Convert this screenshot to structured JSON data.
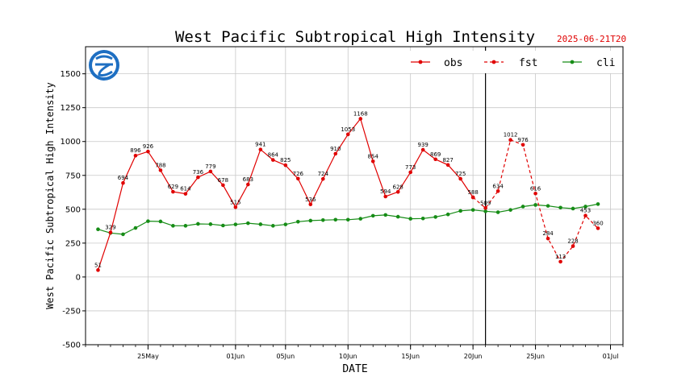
{
  "chart_data": {
    "type": "line",
    "title": "West Pacific Subtropical High Intensity",
    "timestamp": "2025-06-21T20",
    "xlabel": "DATE",
    "ylabel": "West Pacific Subtropical High Intensity",
    "ylim": [
      -500,
      1700
    ],
    "yticks": [
      -500,
      -250,
      0,
      250,
      500,
      750,
      1000,
      1250,
      1500
    ],
    "xlim": [
      "2025-05-20",
      "2025-07-02"
    ],
    "xticks": [
      {
        "date": "2025-05-25",
        "label": "25May"
      },
      {
        "date": "2025-06-01",
        "label": "01Jun"
      },
      {
        "date": "2025-06-05",
        "label": "05Jun"
      },
      {
        "date": "2025-06-10",
        "label": "10Jun"
      },
      {
        "date": "2025-06-15",
        "label": "15Jun"
      },
      {
        "date": "2025-06-20",
        "label": "20Jun"
      },
      {
        "date": "2025-06-25",
        "label": "25Jun"
      },
      {
        "date": "2025-07-01",
        "label": "01Jul"
      }
    ],
    "vline": "2025-06-21",
    "grid": true,
    "legend_position": "top-right",
    "series": [
      {
        "name": "obs",
        "color": "#e00000",
        "style": "solid",
        "labeled": true,
        "points": [
          {
            "x": "2025-05-21",
            "y": 51
          },
          {
            "x": "2025-05-22",
            "y": 329
          },
          {
            "x": "2025-05-23",
            "y": 694
          },
          {
            "x": "2025-05-24",
            "y": 896
          },
          {
            "x": "2025-05-25",
            "y": 926
          },
          {
            "x": "2025-05-26",
            "y": 788
          },
          {
            "x": "2025-05-27",
            "y": 629
          },
          {
            "x": "2025-05-28",
            "y": 614
          },
          {
            "x": "2025-05-29",
            "y": 736
          },
          {
            "x": "2025-05-30",
            "y": 779
          },
          {
            "x": "2025-05-31",
            "y": 678
          },
          {
            "x": "2025-06-01",
            "y": 515
          },
          {
            "x": "2025-06-02",
            "y": 683
          },
          {
            "x": "2025-06-03",
            "y": 941
          },
          {
            "x": "2025-06-04",
            "y": 864
          },
          {
            "x": "2025-06-05",
            "y": 825
          },
          {
            "x": "2025-06-06",
            "y": 726
          },
          {
            "x": "2025-06-07",
            "y": 536
          },
          {
            "x": "2025-06-08",
            "y": 724
          },
          {
            "x": "2025-06-09",
            "y": 910
          },
          {
            "x": "2025-06-10",
            "y": 1053
          },
          {
            "x": "2025-06-11",
            "y": 1168
          },
          {
            "x": "2025-06-12",
            "y": 854
          },
          {
            "x": "2025-06-13",
            "y": 594
          },
          {
            "x": "2025-06-14",
            "y": 628
          },
          {
            "x": "2025-06-15",
            "y": 773
          },
          {
            "x": "2025-06-16",
            "y": 939
          },
          {
            "x": "2025-06-17",
            "y": 869
          },
          {
            "x": "2025-06-18",
            "y": 827
          },
          {
            "x": "2025-06-19",
            "y": 725
          },
          {
            "x": "2025-06-20",
            "y": 588
          }
        ]
      },
      {
        "name": "fst",
        "color": "#e00000",
        "style": "dashed",
        "labeled": true,
        "points": [
          {
            "x": "2025-06-20",
            "y": 588
          },
          {
            "x": "2025-06-21",
            "y": 509
          },
          {
            "x": "2025-06-22",
            "y": 634
          },
          {
            "x": "2025-06-23",
            "y": 1012
          },
          {
            "x": "2025-06-24",
            "y": 976
          },
          {
            "x": "2025-06-25",
            "y": 616
          },
          {
            "x": "2025-06-26",
            "y": 284
          },
          {
            "x": "2025-06-27",
            "y": 113
          },
          {
            "x": "2025-06-28",
            "y": 228
          },
          {
            "x": "2025-06-29",
            "y": 453
          },
          {
            "x": "2025-06-30",
            "y": 360
          }
        ]
      },
      {
        "name": "cli",
        "color": "#168c16",
        "style": "solid",
        "labeled": false,
        "points": [
          {
            "x": "2025-05-21",
            "y": 352
          },
          {
            "x": "2025-05-22",
            "y": 325
          },
          {
            "x": "2025-05-23",
            "y": 315
          },
          {
            "x": "2025-05-24",
            "y": 362
          },
          {
            "x": "2025-05-25",
            "y": 412
          },
          {
            "x": "2025-05-26",
            "y": 410
          },
          {
            "x": "2025-05-27",
            "y": 378
          },
          {
            "x": "2025-05-28",
            "y": 378
          },
          {
            "x": "2025-05-29",
            "y": 392
          },
          {
            "x": "2025-05-30",
            "y": 390
          },
          {
            "x": "2025-05-31",
            "y": 380
          },
          {
            "x": "2025-06-01",
            "y": 388
          },
          {
            "x": "2025-06-02",
            "y": 397
          },
          {
            "x": "2025-06-03",
            "y": 389
          },
          {
            "x": "2025-06-04",
            "y": 378
          },
          {
            "x": "2025-06-05",
            "y": 388
          },
          {
            "x": "2025-06-06",
            "y": 408
          },
          {
            "x": "2025-06-07",
            "y": 416
          },
          {
            "x": "2025-06-08",
            "y": 420
          },
          {
            "x": "2025-06-09",
            "y": 423
          },
          {
            "x": "2025-06-10",
            "y": 423
          },
          {
            "x": "2025-06-11",
            "y": 430
          },
          {
            "x": "2025-06-12",
            "y": 452
          },
          {
            "x": "2025-06-13",
            "y": 458
          },
          {
            "x": "2025-06-14",
            "y": 445
          },
          {
            "x": "2025-06-15",
            "y": 430
          },
          {
            "x": "2025-06-16",
            "y": 432
          },
          {
            "x": "2025-06-17",
            "y": 443
          },
          {
            "x": "2025-06-18",
            "y": 462
          },
          {
            "x": "2025-06-19",
            "y": 488
          },
          {
            "x": "2025-06-20",
            "y": 495
          },
          {
            "x": "2025-06-21",
            "y": 485
          },
          {
            "x": "2025-06-22",
            "y": 478
          },
          {
            "x": "2025-06-23",
            "y": 495
          },
          {
            "x": "2025-06-24",
            "y": 520
          },
          {
            "x": "2025-06-25",
            "y": 532
          },
          {
            "x": "2025-06-26",
            "y": 525
          },
          {
            "x": "2025-06-27",
            "y": 512
          },
          {
            "x": "2025-06-28",
            "y": 505
          },
          {
            "x": "2025-06-29",
            "y": 520
          },
          {
            "x": "2025-06-30",
            "y": 538
          }
        ]
      }
    ]
  }
}
